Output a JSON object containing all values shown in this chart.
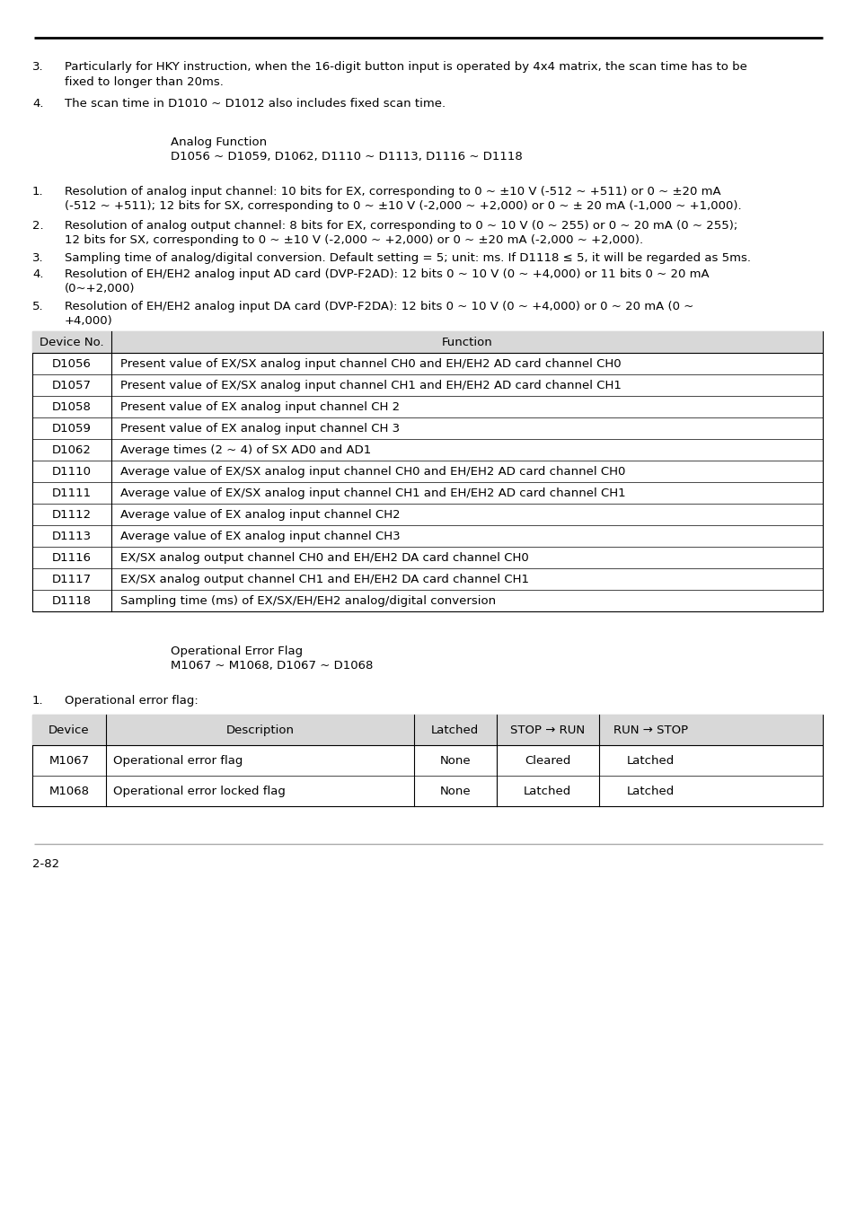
{
  "bg_color": "#ffffff",
  "text_color": "#000000",
  "header_bg": "#d8d8d8",
  "page_number": "2-82",
  "section1_title": "Analog Function",
  "section1_subtitle": "D1056 ~ D1059, D1062, D1110 ~ D1113, D1116 ~ D1118",
  "section2_title": "Operational Error Flag",
  "section2_subtitle": "M1067 ~ M1068, D1067 ~ D1068",
  "table1_rows": [
    [
      "D1056",
      "Present value of EX/SX analog input channel CH0 and EH/EH2 AD card channel CH0"
    ],
    [
      "D1057",
      "Present value of EX/SX analog input channel CH1 and EH/EH2 AD card channel CH1"
    ],
    [
      "D1058",
      "Present value of EX analog input channel CH 2"
    ],
    [
      "D1059",
      "Present value of EX analog input channel CH 3"
    ],
    [
      "D1062",
      "Average times (2 ~ 4) of SX AD0 and AD1"
    ],
    [
      "D1110",
      "Average value of EX/SX analog input channel CH0 and EH/EH2 AD card channel CH0"
    ],
    [
      "D1111",
      "Average value of EX/SX analog input channel CH1 and EH/EH2 AD card channel CH1"
    ],
    [
      "D1112",
      "Average value of EX analog input channel CH2"
    ],
    [
      "D1113",
      "Average value of EX analog input channel CH3"
    ],
    [
      "D1116",
      "EX/SX analog output channel CH0 and EH/EH2 DA card channel CH0"
    ],
    [
      "D1117",
      "EX/SX analog output channel CH1 and EH/EH2 DA card channel CH1"
    ],
    [
      "D1118",
      "Sampling time (ms) of EX/SX/EH/EH2 analog/digital conversion"
    ]
  ],
  "table2_rows": [
    [
      "M1067",
      "Operational error flag",
      "None",
      "Cleared",
      "Latched"
    ],
    [
      "M1068",
      "Operational error locked flag",
      "None",
      "Latched",
      "Latched"
    ]
  ]
}
